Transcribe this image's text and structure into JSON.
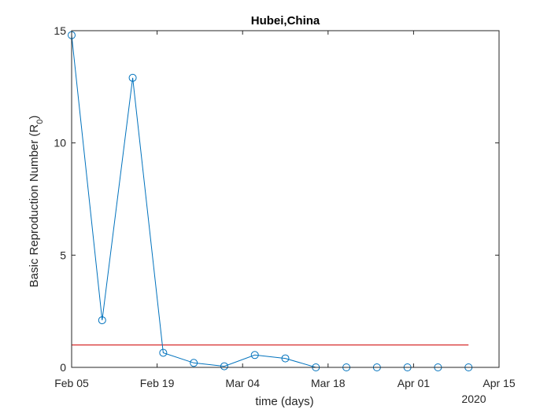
{
  "chart_data": {
    "type": "line",
    "title": "Hubei,China",
    "xlabel": "time (days)",
    "ylabel": "Basic Reproduction Number (R",
    "ylabel_subscript": "0",
    "ylabel_suffix": ")",
    "year_label": "2020",
    "x_ticks": [
      "Feb 05",
      "Feb 19",
      "Mar 04",
      "Mar 18",
      "Apr 01",
      "Apr 15"
    ],
    "y_ticks": [
      "0",
      "5",
      "10",
      "15"
    ],
    "xlim": [
      "2020-02-05",
      "2020-04-15"
    ],
    "ylim": [
      0,
      15
    ],
    "grid": false,
    "series": [
      {
        "color": "#0072BD",
        "marker": "circle",
        "x": [
          "2020-02-05",
          "2020-02-10",
          "2020-02-15",
          "2020-02-20",
          "2020-02-25",
          "2020-03-01",
          "2020-03-06",
          "2020-03-11",
          "2020-03-16",
          "2020-03-21",
          "2020-03-26",
          "2020-03-31",
          "2020-04-05",
          "2020-04-10"
        ],
        "values": [
          14.8,
          2.1,
          12.9,
          0.65,
          0.2,
          0.05,
          0.55,
          0.4,
          0.0,
          0.0,
          0.0,
          0.0,
          0.0,
          0.0
        ]
      }
    ],
    "reference_line": {
      "color": "#D62728",
      "y": 1,
      "x_start": "2020-02-05",
      "x_end": "2020-04-10"
    }
  }
}
